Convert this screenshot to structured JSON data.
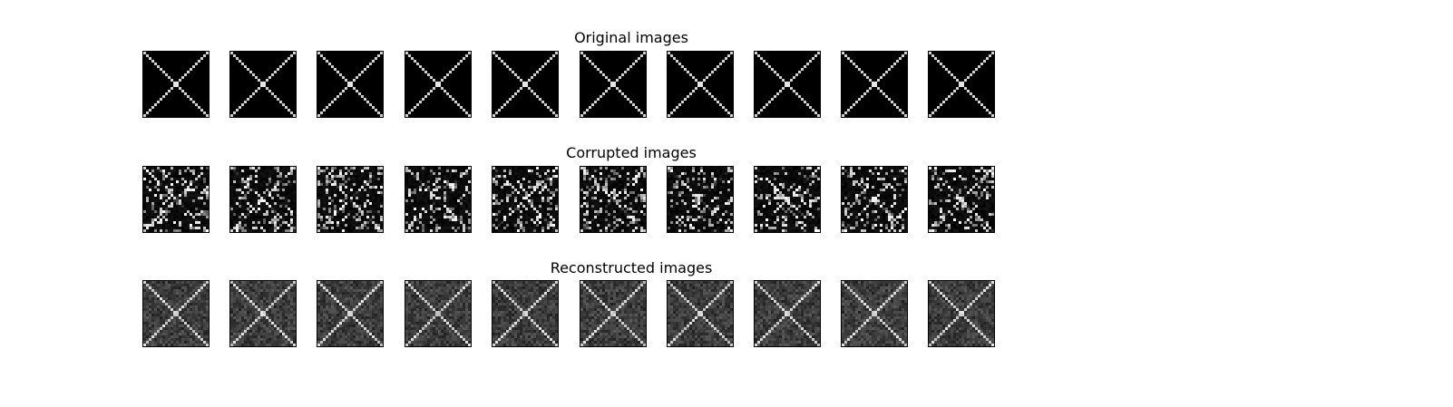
{
  "figure": {
    "grid_size": 24,
    "rows": [
      {
        "title": "Original images",
        "kind": "original",
        "count": 10
      },
      {
        "title": "Corrupted images",
        "kind": "corrupted",
        "count": 10
      },
      {
        "title": "Reconstructed images",
        "kind": "reconstructed",
        "count": 10
      }
    ],
    "colormap": "gray"
  }
}
